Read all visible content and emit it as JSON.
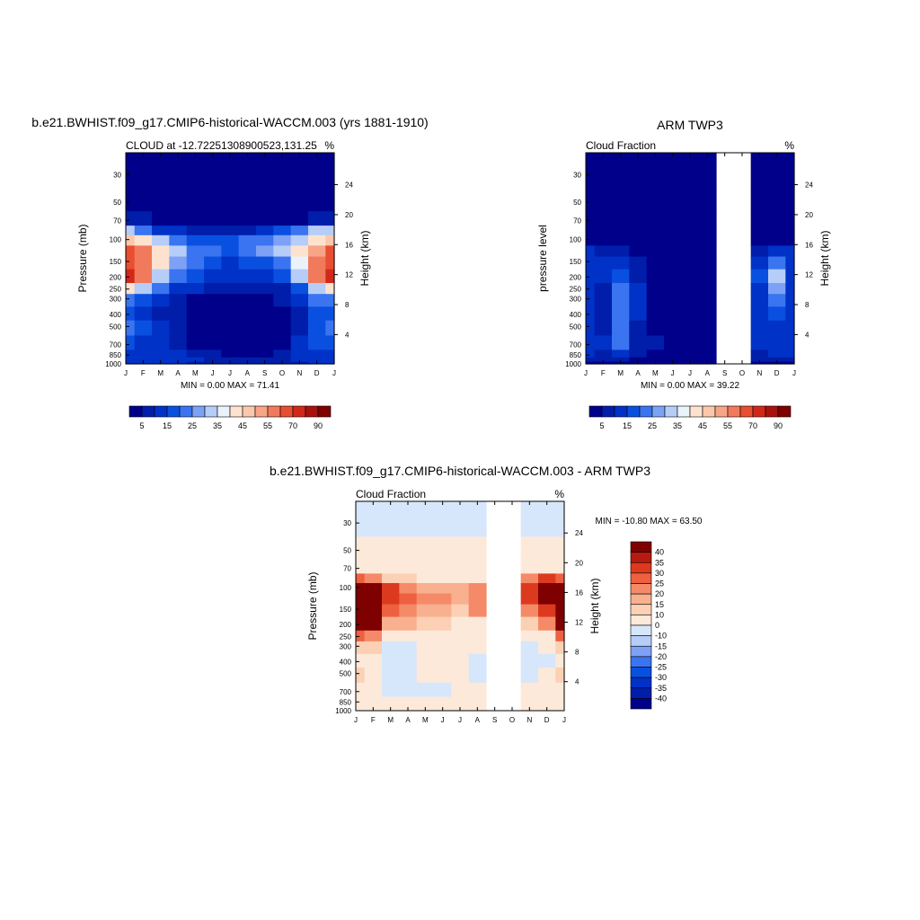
{
  "chart_data": [
    {
      "type": "heatmap",
      "title": "b.e21.BWHIST.f09_g17.CMIP6-historical-WACCM.003 (yrs 1881-1910)",
      "subtitle_left": "CLOUD at -12.72251308900523,131.25",
      "subtitle_right": "%",
      "ylabel": "Pressure (mb)",
      "ylabel_right": "Height (km)",
      "x_ticks": [
        "J",
        "F",
        "M",
        "A",
        "M",
        "J",
        "J",
        "A",
        "S",
        "O",
        "N",
        "D",
        "J"
      ],
      "y_ticks": [
        30,
        50,
        70,
        100,
        150,
        200,
        250,
        300,
        400,
        500,
        700,
        850,
        1000
      ],
      "y_ticks_right": [
        24,
        20,
        16,
        12,
        8,
        4
      ],
      "ylim": [
        1000,
        20
      ],
      "stats": "MIN =   0.00 MAX =  71.41",
      "colorbar_labels": [
        "5",
        "15",
        "25",
        "35",
        "45",
        "55",
        "70",
        "90"
      ],
      "colorbar_levels": [
        0,
        5,
        10,
        15,
        20,
        25,
        30,
        35,
        40,
        45,
        50,
        55,
        60,
        70,
        80,
        90
      ],
      "colorbar_colors": [
        "#00008b",
        "#001eaa",
        "#0032c8",
        "#0a50e0",
        "#3a74f0",
        "#7da2f5",
        "#b6cdf8",
        "#eaf2fc",
        "#fde3cf",
        "#fbc8ac",
        "#f7a586",
        "#f27a5c",
        "#e84e32",
        "#d2281a",
        "#a8120d",
        "#7f0000"
      ],
      "x": [
        "J",
        "F",
        "M",
        "A",
        "M",
        "J",
        "J",
        "A",
        "S",
        "O",
        "N",
        "D",
        "J"
      ],
      "pressure_levels": [
        20,
        30,
        50,
        70,
        85,
        100,
        125,
        150,
        200,
        250,
        300,
        400,
        500,
        700,
        850,
        925,
        1000
      ],
      "values": [
        [
          1,
          1,
          1,
          1,
          1,
          1,
          1,
          1,
          1,
          1,
          1,
          1,
          1
        ],
        [
          1,
          1,
          1,
          1,
          1,
          1,
          1,
          1,
          1,
          1,
          1,
          1,
          1
        ],
        [
          1,
          1,
          1,
          1,
          1,
          1,
          1,
          1,
          1,
          1,
          1,
          1,
          1
        ],
        [
          7,
          6,
          3,
          3,
          2,
          2,
          2,
          2,
          2,
          3,
          4,
          6,
          7
        ],
        [
          30,
          24,
          14,
          10,
          7,
          6,
          7,
          9,
          12,
          16,
          24,
          30,
          30
        ],
        [
          45,
          40,
          32,
          24,
          18,
          16,
          17,
          20,
          23,
          28,
          34,
          42,
          45
        ],
        [
          62,
          55,
          40,
          30,
          24,
          20,
          18,
          22,
          25,
          30,
          40,
          50,
          62
        ],
        [
          66,
          58,
          40,
          28,
          20,
          16,
          14,
          16,
          18,
          22,
          35,
          55,
          66
        ],
        [
          70,
          55,
          34,
          24,
          16,
          12,
          10,
          10,
          12,
          16,
          30,
          55,
          70
        ],
        [
          40,
          30,
          20,
          14,
          10,
          6,
          5,
          5,
          6,
          9,
          18,
          32,
          40
        ],
        [
          24,
          18,
          12,
          8,
          4,
          2,
          2,
          2,
          3,
          5,
          12,
          24,
          24
        ],
        [
          18,
          14,
          8,
          5,
          2,
          1,
          1,
          1,
          2,
          3,
          9,
          16,
          18
        ],
        [
          20,
          16,
          10,
          5,
          2,
          1,
          1,
          1,
          2,
          3,
          9,
          18,
          20
        ],
        [
          16,
          14,
          10,
          6,
          3,
          1,
          1,
          1,
          2,
          4,
          10,
          16,
          16
        ],
        [
          14,
          12,
          12,
          10,
          8,
          6,
          4,
          4,
          4,
          6,
          10,
          14,
          14
        ],
        [
          12,
          12,
          12,
          12,
          10,
          8,
          6,
          6,
          6,
          8,
          10,
          12,
          12
        ],
        [
          10,
          10,
          10,
          10,
          8,
          7,
          6,
          6,
          6,
          7,
          8,
          10,
          10
        ]
      ]
    },
    {
      "type": "heatmap",
      "title": "ARM TWP3",
      "subtitle_left": "Cloud Fraction",
      "subtitle_right": "%",
      "ylabel": "pressure level",
      "ylabel_right": "Height (km)",
      "x_ticks": [
        "J",
        "F",
        "M",
        "A",
        "M",
        "J",
        "J",
        "A",
        "S",
        "O",
        "N",
        "D",
        "J"
      ],
      "y_ticks": [
        30,
        50,
        70,
        100,
        150,
        200,
        250,
        300,
        400,
        500,
        700,
        850,
        1000
      ],
      "y_ticks_right": [
        24,
        20,
        16,
        12,
        8,
        4
      ],
      "ylim": [
        1000,
        20
      ],
      "stats": "MIN =   0.00 MAX =  39.22",
      "colorbar_labels": [
        "5",
        "15",
        "25",
        "35",
        "45",
        "55",
        "70",
        "90"
      ],
      "colorbar_levels": [
        0,
        5,
        10,
        15,
        20,
        25,
        30,
        35,
        40,
        45,
        50,
        55,
        60,
        70,
        80,
        90
      ],
      "colorbar_colors": [
        "#00008b",
        "#001eaa",
        "#0032c8",
        "#0a50e0",
        "#3a74f0",
        "#7da2f5",
        "#b6cdf8",
        "#eaf2fc",
        "#fde3cf",
        "#fbc8ac",
        "#f7a586",
        "#f27a5c",
        "#e84e32",
        "#d2281a",
        "#a8120d",
        "#7f0000"
      ],
      "x": [
        "J",
        "F",
        "M",
        "A",
        "M",
        "J",
        "J",
        "A",
        "S",
        "O",
        "N",
        "D",
        "J"
      ],
      "missing_months": [
        "S",
        "O"
      ],
      "pressure_levels": [
        20,
        30,
        50,
        70,
        85,
        100,
        125,
        150,
        200,
        250,
        300,
        400,
        500,
        700,
        850,
        925,
        1000
      ],
      "values": [
        [
          1,
          1,
          1,
          1,
          1,
          1,
          1,
          1,
          null,
          null,
          1,
          1,
          1
        ],
        [
          1,
          1,
          1,
          1,
          1,
          1,
          1,
          1,
          null,
          null,
          1,
          1,
          1
        ],
        [
          1,
          1,
          1,
          1,
          1,
          1,
          1,
          1,
          null,
          null,
          1,
          1,
          1
        ],
        [
          1,
          1,
          1,
          1,
          1,
          1,
          1,
          1,
          null,
          null,
          1,
          1,
          1
        ],
        [
          1,
          1,
          1,
          1,
          1,
          1,
          1,
          1,
          null,
          null,
          1,
          1,
          1
        ],
        [
          3,
          2,
          2,
          1,
          1,
          1,
          1,
          1,
          null,
          null,
          2,
          3,
          3
        ],
        [
          10,
          6,
          6,
          3,
          1,
          1,
          1,
          1,
          null,
          null,
          6,
          10,
          10
        ],
        [
          14,
          10,
          12,
          6,
          2,
          1,
          1,
          1,
          null,
          null,
          12,
          22,
          14
        ],
        [
          14,
          10,
          16,
          8,
          2,
          1,
          1,
          1,
          null,
          null,
          16,
          34,
          14
        ],
        [
          12,
          8,
          22,
          10,
          2,
          1,
          1,
          1,
          null,
          null,
          14,
          28,
          12
        ],
        [
          14,
          8,
          24,
          10,
          2,
          1,
          1,
          1,
          null,
          null,
          12,
          22,
          14
        ],
        [
          12,
          8,
          22,
          10,
          2,
          1,
          1,
          1,
          null,
          null,
          10,
          18,
          12
        ],
        [
          10,
          8,
          20,
          8,
          2,
          1,
          1,
          1,
          null,
          null,
          10,
          14,
          10
        ],
        [
          12,
          10,
          20,
          8,
          6,
          2,
          1,
          1,
          null,
          null,
          10,
          12,
          12
        ],
        [
          10,
          8,
          10,
          6,
          4,
          2,
          1,
          1,
          null,
          null,
          8,
          10,
          10
        ],
        [
          6,
          6,
          6,
          4,
          2,
          2,
          1,
          1,
          null,
          null,
          6,
          6,
          6
        ],
        [
          3,
          3,
          3,
          2,
          2,
          1,
          1,
          1,
          null,
          null,
          3,
          3,
          3
        ]
      ]
    },
    {
      "type": "heatmap",
      "title": "b.e21.BWHIST.f09_g17.CMIP6-historical-WACCM.003 - ARM TWP3",
      "subtitle_left": "Cloud Fraction",
      "subtitle_right": "%",
      "ylabel": "Pressure (mb)",
      "ylabel_right": "Height (km)",
      "x_ticks": [
        "J",
        "F",
        "M",
        "A",
        "M",
        "J",
        "J",
        "A",
        "S",
        "O",
        "N",
        "D",
        "J"
      ],
      "y_ticks": [
        30,
        50,
        70,
        100,
        150,
        200,
        250,
        300,
        400,
        500,
        700,
        850,
        1000
      ],
      "y_ticks_right": [
        24,
        20,
        16,
        12,
        8,
        4
      ],
      "ylim": [
        1000,
        20
      ],
      "stats": "MIN = -10.80 MAX =  63.50",
      "colorbar_labels": [
        "40",
        "35",
        "30",
        "25",
        "20",
        "15",
        "10",
        "0",
        "-10",
        "-15",
        "-20",
        "-25",
        "-30",
        "-35",
        "-40"
      ],
      "colorbar_levels": [
        -45,
        -40,
        -35,
        -30,
        -25,
        -20,
        -15,
        -10,
        0,
        10,
        15,
        20,
        25,
        30,
        35,
        40
      ],
      "colorbar_colors": [
        "#00008b",
        "#001eaa",
        "#0032c8",
        "#0a50e0",
        "#3a74f0",
        "#7da2f5",
        "#b6cdf8",
        "#d6e6fb",
        "#fde9d9",
        "#fbd0b4",
        "#f8b08e",
        "#f48a68",
        "#ed6040",
        "#dc3a1e",
        "#b81a10",
        "#7f0000"
      ],
      "x": [
        "J",
        "F",
        "M",
        "A",
        "M",
        "J",
        "J",
        "A",
        "S",
        "O",
        "N",
        "D",
        "J"
      ],
      "missing_months": [
        "S",
        "O"
      ],
      "pressure_levels": [
        20,
        30,
        50,
        70,
        85,
        100,
        125,
        150,
        200,
        250,
        300,
        400,
        500,
        700,
        850,
        925,
        1000
      ],
      "values": [
        [
          -1,
          -1,
          -1,
          -1,
          -1,
          -1,
          -1,
          -1,
          null,
          null,
          -1,
          -1,
          -1
        ],
        [
          -1,
          -1,
          -1,
          -1,
          -1,
          -1,
          -1,
          -1,
          null,
          null,
          -1,
          -1,
          -1
        ],
        [
          1,
          1,
          1,
          1,
          1,
          1,
          1,
          1,
          null,
          null,
          1,
          1,
          1
        ],
        [
          1,
          1,
          1,
          1,
          1,
          1,
          1,
          1,
          null,
          null,
          1,
          1,
          1
        ],
        [
          28,
          24,
          14,
          10,
          7,
          6,
          7,
          9,
          null,
          null,
          24,
          30,
          28
        ],
        [
          45,
          40,
          32,
          24,
          18,
          16,
          17,
          22,
          null,
          null,
          34,
          42,
          45
        ],
        [
          52,
          48,
          34,
          26,
          24,
          20,
          18,
          24,
          null,
          null,
          34,
          40,
          52
        ],
        [
          52,
          48,
          28,
          22,
          18,
          16,
          14,
          20,
          null,
          null,
          24,
          34,
          52
        ],
        [
          56,
          45,
          18,
          16,
          14,
          11,
          9,
          9,
          null,
          null,
          14,
          21,
          56
        ],
        [
          28,
          22,
          4,
          4,
          8,
          5,
          4,
          4,
          null,
          null,
          4,
          4,
          28
        ],
        [
          10,
          10,
          -3,
          -2,
          2,
          1,
          1,
          1,
          null,
          null,
          -2,
          2,
          10
        ],
        [
          6,
          6,
          -6,
          -5,
          1,
          1,
          1,
          -2,
          null,
          null,
          -1,
          -2,
          6
        ],
        [
          10,
          8,
          -4,
          -3,
          1,
          1,
          1,
          -3,
          null,
          null,
          -1,
          4,
          10
        ],
        [
          4,
          4,
          -6,
          -2,
          -2,
          -1,
          1,
          1,
          null,
          null,
          1,
          4,
          4
        ],
        [
          4,
          4,
          2,
          4,
          4,
          4,
          3,
          3,
          null,
          null,
          2,
          4,
          4
        ],
        [
          6,
          6,
          6,
          8,
          8,
          6,
          5,
          5,
          null,
          null,
          4,
          6,
          6
        ],
        [
          7,
          7,
          7,
          8,
          6,
          6,
          5,
          5,
          null,
          null,
          5,
          7,
          7
        ]
      ]
    }
  ]
}
